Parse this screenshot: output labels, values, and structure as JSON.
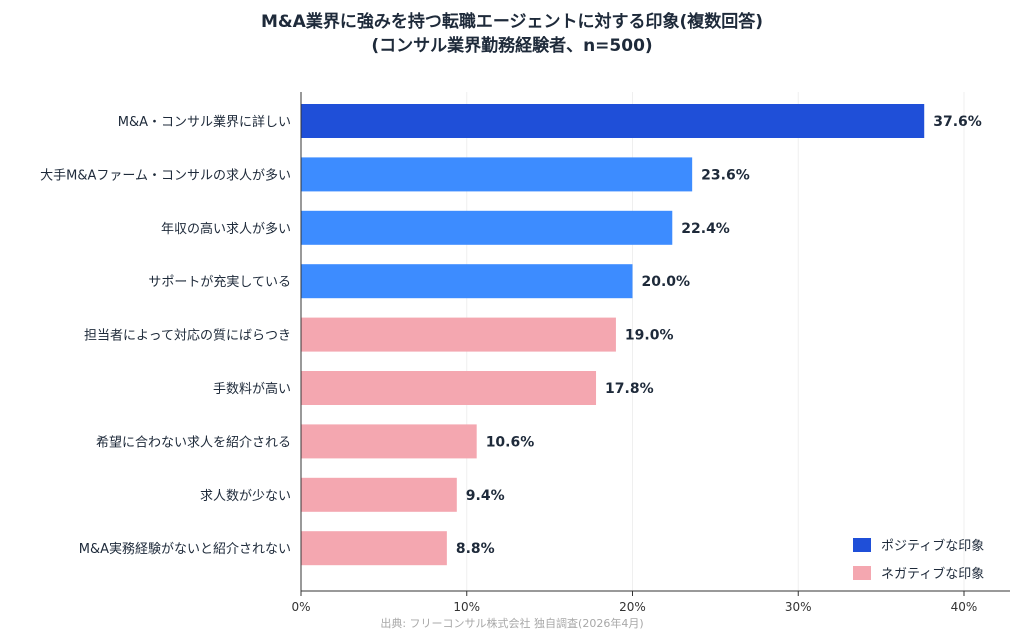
{
  "chart_data": {
    "type": "bar",
    "orientation": "horizontal",
    "title_lines": [
      "M&A業界に強みを持つ転職エージェントに対する印象(複数回答)",
      "(コンサル業界勤務経験者、n=500)"
    ],
    "categories": [
      "M&A・コンサル業界に詳しい",
      "大手M&Aファーム・コンサルの求人が多い",
      "年収の高い求人が多い",
      "サポートが充実している",
      "担当者によって対応の質にばらつき",
      "手数料が高い",
      "希望に合わない求人を紹介される",
      "求人数が少ない",
      "M&A実務経験がないと紹介されない"
    ],
    "values": [
      37.6,
      23.6,
      22.4,
      20.0,
      19.0,
      17.8,
      10.6,
      9.4,
      8.8
    ],
    "value_labels": [
      "37.6%",
      "23.6%",
      "22.4%",
      "20.0%",
      "19.0%",
      "17.8%",
      "10.6%",
      "9.4%",
      "8.8%"
    ],
    "groups": [
      "top",
      "positive",
      "positive",
      "positive",
      "negative",
      "negative",
      "negative",
      "negative",
      "negative"
    ],
    "xlim": [
      0,
      40
    ],
    "x_ticks": [
      0,
      10,
      20,
      30,
      40
    ],
    "x_tick_labels": [
      "0%",
      "10%",
      "20%",
      "30%",
      "40%"
    ],
    "grid": true,
    "legend": {
      "placement": "bottom-right",
      "entries": [
        {
          "label": "ポジティブな印象",
          "color": "#1f4fd8"
        },
        {
          "label": "ネガティブな印象",
          "color": "#f4a7b0"
        }
      ]
    },
    "colors": {
      "top": "#1f4fd8",
      "positive": "#3d8cff",
      "negative": "#f4a7b0"
    },
    "source_note": "出典: フリーコンサル株式会社 独自調査(2026年4月)"
  }
}
